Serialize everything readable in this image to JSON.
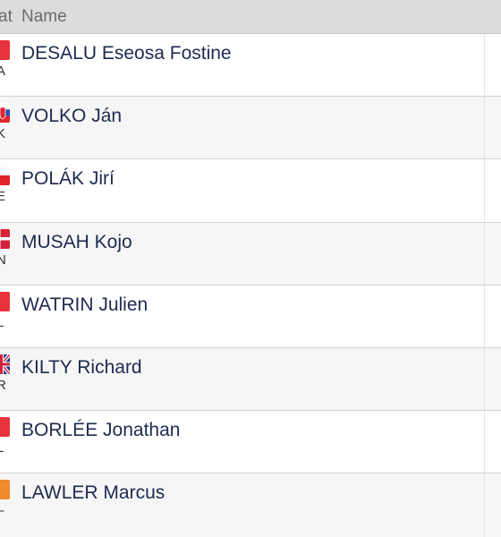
{
  "header": {
    "nat_label": "at",
    "name_label": "Name"
  },
  "rows": [
    {
      "name": "DESALU Eseosa Fostine",
      "code": "A",
      "flag": "red-flag-icon"
    },
    {
      "name": "VOLKO Ján",
      "code": "K",
      "flag": "slovakia-flag-icon"
    },
    {
      "name": "POLÁK Jirí",
      "code": "E",
      "flag": "czech-flag-icon"
    },
    {
      "name": "MUSAH Kojo",
      "code": "N",
      "flag": "denmark-flag-icon"
    },
    {
      "name": "WATRIN Julien",
      "code": "L",
      "flag": "red-flag-icon"
    },
    {
      "name": "KILTY Richard",
      "code": "R",
      "flag": "uk-flag-icon"
    },
    {
      "name": "BORLÉE Jonathan",
      "code": "L",
      "flag": "red-flag-icon"
    },
    {
      "name": "LAWLER Marcus",
      "code": "–",
      "flag": "orange-flag-icon"
    }
  ],
  "colors": {
    "header_bg": "#dcdcdc",
    "name_text": "#1e2a4f",
    "alt_row_bg": "#f6f6f6"
  }
}
